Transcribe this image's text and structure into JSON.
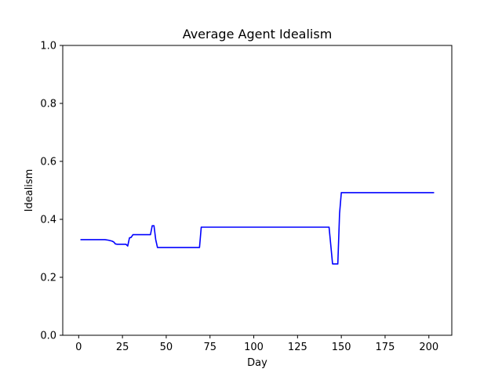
{
  "chart_data": {
    "type": "line",
    "title": "Average Agent Idealism",
    "xlabel": "Day",
    "ylabel": "Idealism",
    "xlim": [
      -9.1,
      213.1
    ],
    "ylim": [
      0.0,
      1.0
    ],
    "xticks": [
      0,
      25,
      50,
      75,
      100,
      125,
      150,
      175,
      200
    ],
    "yticks": [
      0.0,
      0.2,
      0.4,
      0.6,
      0.8,
      1.0
    ],
    "xtick_labels": [
      "0",
      "25",
      "50",
      "75",
      "100",
      "125",
      "150",
      "175",
      "200"
    ],
    "ytick_labels": [
      "0.0",
      "0.2",
      "0.4",
      "0.6",
      "0.8",
      "1.0"
    ],
    "grid": false,
    "series": [
      {
        "color": "#0000ff",
        "x": [
          1,
          15,
          17,
          19,
          20,
          21,
          22,
          27,
          28,
          29,
          30,
          31,
          32,
          41,
          42,
          43,
          44,
          45,
          50,
          60,
          69,
          70,
          75,
          100,
          125,
          143,
          144,
          145,
          146,
          147,
          148,
          149,
          150,
          175,
          203
        ],
        "y": [
          0.33,
          0.33,
          0.328,
          0.325,
          0.322,
          0.315,
          0.314,
          0.314,
          0.308,
          0.336,
          0.338,
          0.347,
          0.347,
          0.347,
          0.378,
          0.378,
          0.33,
          0.303,
          0.303,
          0.303,
          0.303,
          0.373,
          0.373,
          0.373,
          0.373,
          0.373,
          0.31,
          0.246,
          0.246,
          0.246,
          0.246,
          0.42,
          0.492,
          0.492,
          0.492
        ]
      }
    ]
  }
}
